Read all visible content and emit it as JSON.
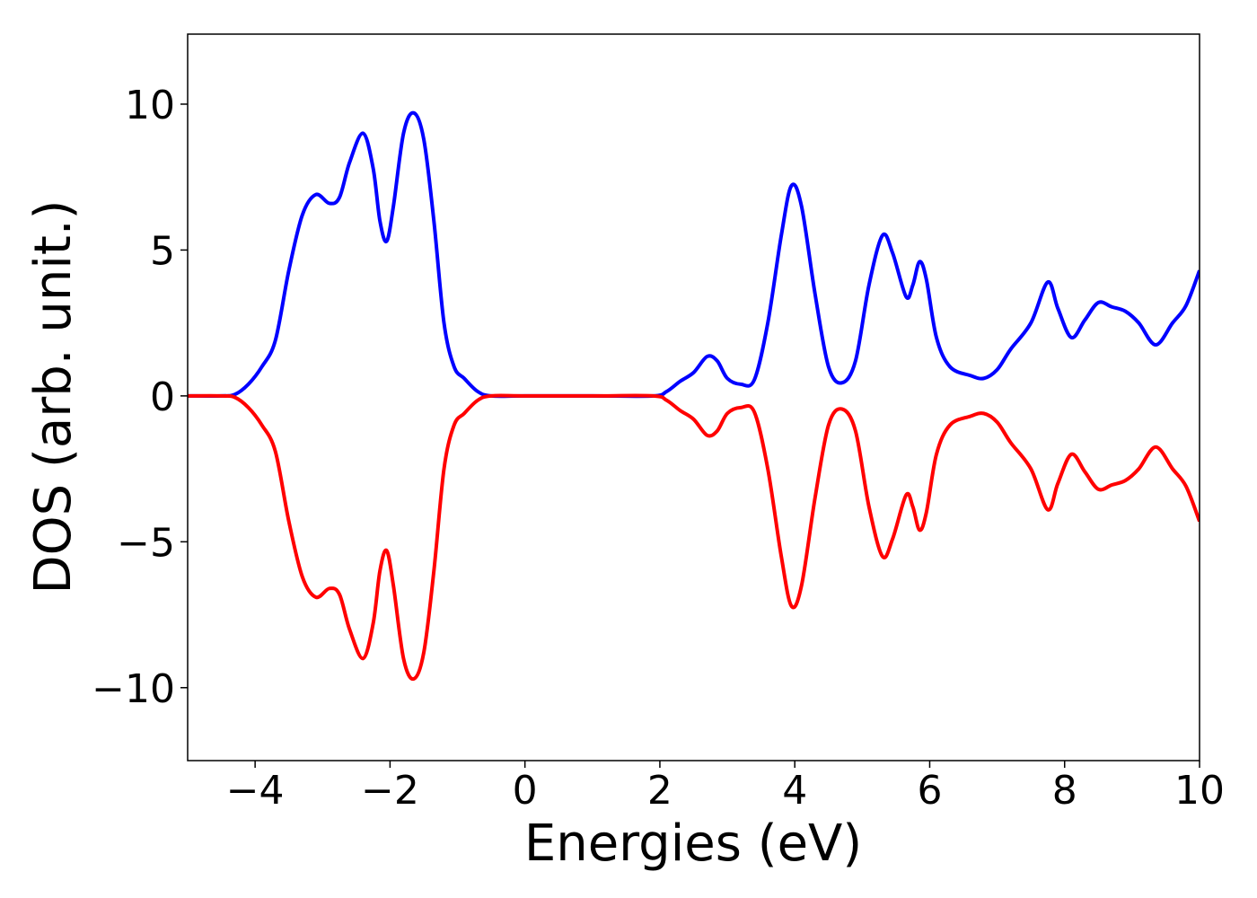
{
  "chart_data": {
    "type": "line",
    "x_label": "Energies (eV)",
    "y_label": "DOS (arb. unit.)",
    "x": [
      -5,
      -4.5,
      -4.3,
      -4.1,
      -3.9,
      -3.7,
      -3.5,
      -3.3,
      -3.1,
      -2.9,
      -2.75,
      -2.6,
      -2.4,
      -2.25,
      -2.15,
      -2.05,
      -1.95,
      -1.8,
      -1.65,
      -1.5,
      -1.35,
      -1.2,
      -1.05,
      -0.9,
      -0.7,
      -0.5,
      0,
      1,
      1.9,
      2.1,
      2.3,
      2.5,
      2.7,
      2.85,
      3.0,
      3.2,
      3.4,
      3.6,
      3.8,
      3.95,
      4.1,
      4.3,
      4.5,
      4.7,
      4.9,
      5.1,
      5.3,
      5.45,
      5.65,
      5.75,
      5.85,
      5.95,
      6.1,
      6.3,
      6.6,
      6.8,
      7.0,
      7.2,
      7.5,
      7.75,
      7.9,
      8.1,
      8.3,
      8.5,
      8.7,
      8.9,
      9.1,
      9.35,
      9.6,
      9.8,
      10.0
    ],
    "series": [
      {
        "color": "#0000ff",
        "values": [
          0,
          0,
          0.05,
          0.4,
          1.0,
          1.9,
          4.3,
          6.2,
          6.9,
          6.6,
          6.8,
          8.0,
          9.0,
          7.8,
          6.0,
          5.3,
          6.5,
          9.0,
          9.7,
          8.8,
          6.0,
          2.5,
          1.0,
          0.6,
          0.15,
          0,
          0,
          0,
          0,
          0.15,
          0.5,
          0.8,
          1.35,
          1.2,
          0.6,
          0.4,
          0.55,
          2.5,
          5.5,
          7.2,
          6.5,
          3.5,
          1.0,
          0.45,
          1.2,
          3.8,
          5.5,
          4.9,
          3.4,
          3.8,
          4.6,
          4.0,
          2.0,
          1.0,
          0.7,
          0.6,
          0.9,
          1.6,
          2.5,
          3.9,
          3.0,
          2.0,
          2.6,
          3.2,
          3.05,
          2.9,
          2.5,
          1.75,
          2.5,
          3.1,
          4.3
        ]
      },
      {
        "color": "#ff0000",
        "values": [
          0,
          0,
          -0.05,
          -0.4,
          -1.0,
          -1.9,
          -4.3,
          -6.2,
          -6.9,
          -6.6,
          -6.8,
          -8.0,
          -9.0,
          -7.8,
          -6.0,
          -5.3,
          -6.5,
          -9.0,
          -9.7,
          -8.8,
          -6.0,
          -2.5,
          -1.0,
          -0.6,
          -0.15,
          0,
          0,
          0,
          0,
          -0.15,
          -0.5,
          -0.8,
          -1.35,
          -1.2,
          -0.6,
          -0.4,
          -0.55,
          -2.5,
          -5.5,
          -7.2,
          -6.5,
          -3.5,
          -1.0,
          -0.45,
          -1.2,
          -3.8,
          -5.5,
          -4.9,
          -3.4,
          -3.8,
          -4.6,
          -4.0,
          -2.0,
          -1.0,
          -0.7,
          -0.6,
          -0.9,
          -1.6,
          -2.5,
          -3.9,
          -3.0,
          -2.0,
          -2.6,
          -3.2,
          -3.05,
          -2.9,
          -2.5,
          -1.75,
          -2.5,
          -3.1,
          -4.3
        ]
      }
    ],
    "xlim": [
      -5,
      10
    ],
    "ylim": [
      -12.5,
      12.4
    ],
    "xticks": [
      {
        "value": -4,
        "label": "−4"
      },
      {
        "value": -2,
        "label": "−2"
      },
      0,
      2,
      4,
      6,
      8,
      10
    ],
    "yticks": [
      {
        "value": -10,
        "label": "−10"
      },
      {
        "value": -5,
        "label": "−5"
      },
      0,
      5,
      10
    ],
    "grid": false
  }
}
